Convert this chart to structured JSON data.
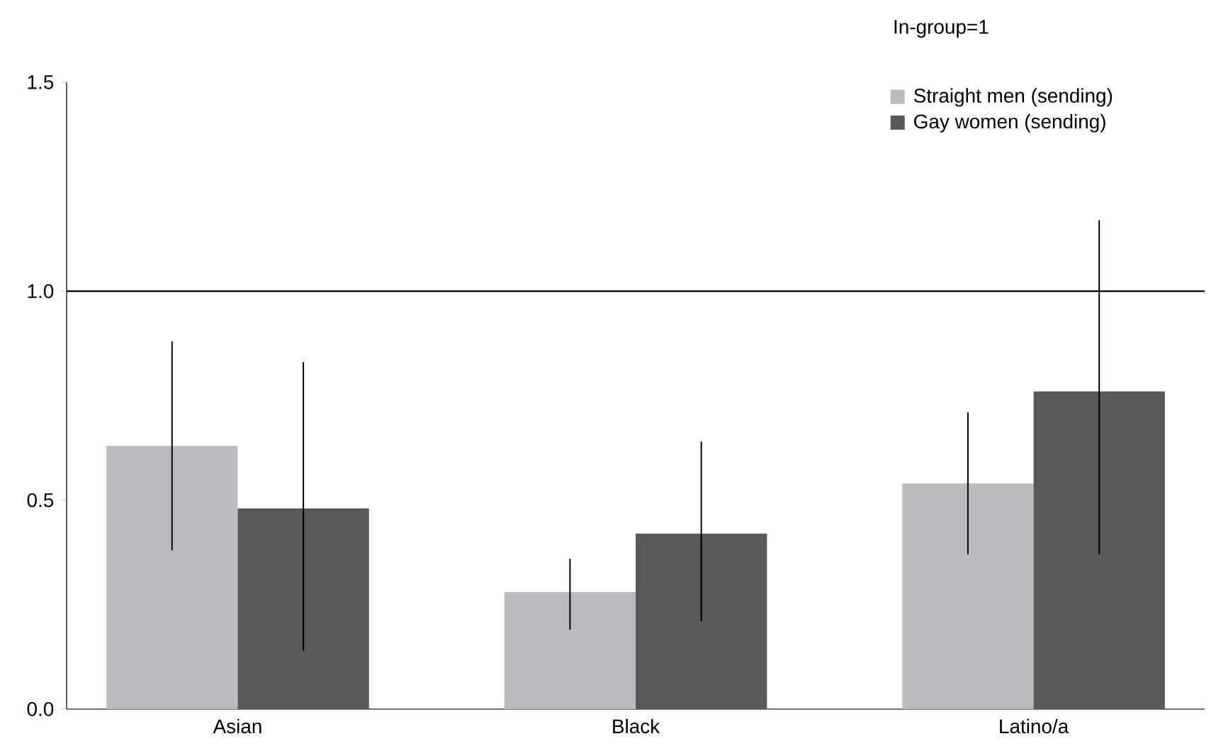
{
  "chart_data": {
    "type": "bar",
    "legend_title": "In-group=1",
    "categories": [
      "Asian",
      "Black",
      "Latino/a"
    ],
    "series": [
      {
        "name": "Straight men (sending)",
        "color": "#bbbcbf",
        "values": [
          0.63,
          0.28,
          0.54
        ],
        "errors": [
          [
            0.38,
            0.88
          ],
          [
            0.19,
            0.36
          ],
          [
            0.37,
            0.71
          ]
        ]
      },
      {
        "name": "Gay women (sending)",
        "color": "#58595b",
        "values": [
          0.48,
          0.42,
          0.76
        ],
        "errors": [
          [
            0.14,
            0.83
          ],
          [
            0.21,
            0.64
          ],
          [
            0.37,
            1.17
          ]
        ]
      }
    ],
    "ylim": [
      0,
      1.5
    ],
    "yticks": [
      {
        "value": 0,
        "label": "0.0"
      },
      {
        "value": 0.5,
        "label": "0.5"
      },
      {
        "value": 1.0,
        "label": "1.0"
      },
      {
        "value": 1.5,
        "label": "1.5"
      }
    ],
    "ref_lines": [
      {
        "axis": "y",
        "value": 1.0,
        "color": "#000000"
      }
    ],
    "legend": "top right",
    "grid": false
  }
}
